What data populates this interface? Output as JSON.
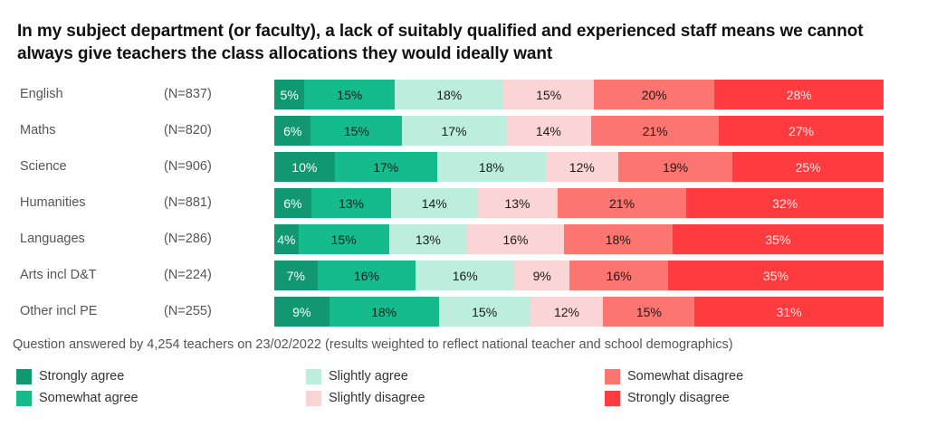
{
  "chart_data": {
    "type": "bar",
    "orientation": "horizontal-stacked-100",
    "title": "In my subject department (or faculty), a lack of suitably qualified and experienced staff means we cannot always give teachers the class allocations they would ideally want",
    "note": "Question answered by 4,254 teachers on 23/02/2022 (results weighted to reflect national teacher and school demographics)",
    "categories": [
      "English",
      "Maths",
      "Science",
      "Humanities",
      "Languages",
      "Arts incl D&T",
      "Other incl PE"
    ],
    "sample_sizes": [
      "(N=837)",
      "(N=820)",
      "(N=906)",
      "(N=881)",
      "(N=286)",
      "(N=224)",
      "(N=255)"
    ],
    "series": [
      {
        "name": "Strongly agree",
        "color": "#129870",
        "text_color": "#ffffff",
        "values": [
          5,
          6,
          10,
          6,
          4,
          7,
          9
        ]
      },
      {
        "name": "Somewhat agree",
        "color": "#15bb8c",
        "text_color": "#1a1a1a",
        "values": [
          15,
          15,
          17,
          13,
          15,
          16,
          18
        ]
      },
      {
        "name": "Slightly agree",
        "color": "#bdeedd",
        "text_color": "#1a1a1a",
        "values": [
          18,
          17,
          18,
          14,
          13,
          16,
          15
        ]
      },
      {
        "name": "Slightly disagree",
        "color": "#fbd5d5",
        "text_color": "#1a1a1a",
        "values": [
          15,
          14,
          12,
          13,
          16,
          9,
          12
        ]
      },
      {
        "name": "Somewhat disagree",
        "color": "#fd7570",
        "text_color": "#1a1a1a",
        "values": [
          20,
          21,
          19,
          21,
          18,
          16,
          15
        ]
      },
      {
        "name": "Strongly disagree",
        "color": "#fe3b3e",
        "text_color": "#ffe8e8",
        "values": [
          28,
          27,
          25,
          32,
          35,
          35,
          31
        ]
      }
    ],
    "value_suffix": "%",
    "legend_position": "bottom",
    "xlim": [
      0,
      100
    ],
    "grid": false
  }
}
